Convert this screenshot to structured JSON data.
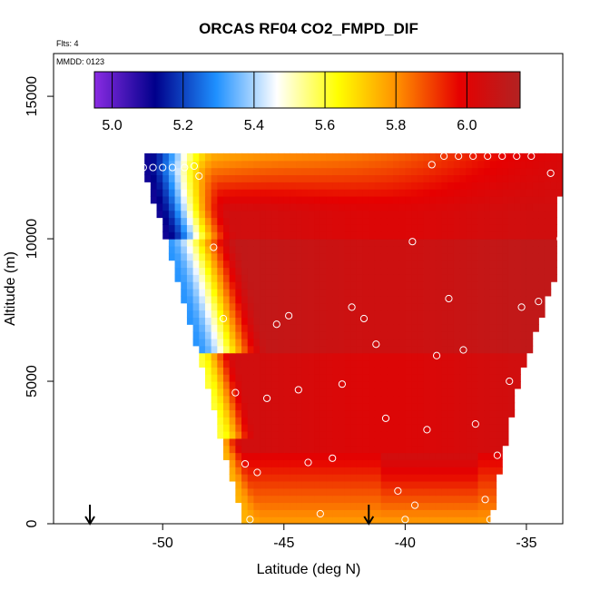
{
  "chart_data": {
    "type": "heatmap",
    "title": "ORCAS RF04 CO2_FMPD_DIF",
    "notes": [
      "Flts: 4",
      "MMDD: 0123"
    ],
    "xlabel": "Latitude (deg N)",
    "ylabel": "Altitude (m)",
    "xlim": [
      -54.5,
      -33.5
    ],
    "ylim": [
      0,
      16500
    ],
    "x_ticks": [
      -50,
      -45,
      -40,
      -35
    ],
    "x_tick_labels": [
      "-50",
      "-45",
      "-40",
      "-35"
    ],
    "y_ticks": [
      0,
      5000,
      10000,
      15000
    ],
    "y_tick_labels": [
      "0",
      "5000",
      "10000",
      "15000"
    ],
    "colorbar": {
      "range": [
        4.95,
        6.15
      ],
      "ticks": [
        5.0,
        5.2,
        5.4,
        5.6,
        5.8,
        6.0
      ],
      "tick_labels": [
        "5.0",
        "5.2",
        "5.4",
        "5.6",
        "5.8",
        "6.0"
      ],
      "colors": [
        "#8a2be2",
        "#00008b",
        "#1e90ff",
        "#ffffff",
        "#ffff00",
        "#ff8c00",
        "#e60000",
        "#b22222"
      ]
    },
    "field_extent": {
      "alt_range": [
        0,
        13000
      ],
      "lat_left_edge": [
        [
          0,
          -46.6
        ],
        [
          2000,
          -47.3
        ],
        [
          5000,
          -48.2
        ],
        [
          9000,
          -49.5
        ],
        [
          12400,
          -50.8
        ]
      ],
      "lat_right_edge": [
        [
          0,
          -36.5
        ],
        [
          2000,
          -36.1
        ],
        [
          5000,
          -35.3
        ],
        [
          9000,
          -33.7
        ],
        [
          12400,
          -33.6
        ]
      ]
    },
    "arrows_lat": [
      -53.0,
      -41.5
    ],
    "flight_points": [
      {
        "lat": -50.8,
        "alt": 12500
      },
      {
        "lat": -50.4,
        "alt": 12500
      },
      {
        "lat": -50.0,
        "alt": 12500
      },
      {
        "lat": -49.6,
        "alt": 12500
      },
      {
        "lat": -49.1,
        "alt": 12500
      },
      {
        "lat": -48.7,
        "alt": 12550
      },
      {
        "lat": -48.5,
        "alt": 12200
      },
      {
        "lat": -47.9,
        "alt": 9700
      },
      {
        "lat": -47.5,
        "alt": 7200
      },
      {
        "lat": -47.0,
        "alt": 4600
      },
      {
        "lat": -46.6,
        "alt": 2100
      },
      {
        "lat": -46.1,
        "alt": 1800
      },
      {
        "lat": -46.4,
        "alt": 150
      },
      {
        "lat": -45.7,
        "alt": 4400
      },
      {
        "lat": -45.3,
        "alt": 7000
      },
      {
        "lat": -44.8,
        "alt": 7300
      },
      {
        "lat": -44.4,
        "alt": 4700
      },
      {
        "lat": -44.0,
        "alt": 2150
      },
      {
        "lat": -43.5,
        "alt": 350
      },
      {
        "lat": -43.0,
        "alt": 2300
      },
      {
        "lat": -42.6,
        "alt": 4900
      },
      {
        "lat": -42.2,
        "alt": 7600
      },
      {
        "lat": -41.7,
        "alt": 7200
      },
      {
        "lat": -41.2,
        "alt": 6300
      },
      {
        "lat": -40.8,
        "alt": 3700
      },
      {
        "lat": -40.3,
        "alt": 1150
      },
      {
        "lat": -40.0,
        "alt": 150
      },
      {
        "lat": -39.6,
        "alt": 650
      },
      {
        "lat": -39.7,
        "alt": 9900
      },
      {
        "lat": -39.1,
        "alt": 3300
      },
      {
        "lat": -38.7,
        "alt": 5900
      },
      {
        "lat": -38.2,
        "alt": 7900
      },
      {
        "lat": -37.6,
        "alt": 6100
      },
      {
        "lat": -37.1,
        "alt": 3500
      },
      {
        "lat": -36.7,
        "alt": 850
      },
      {
        "lat": -36.5,
        "alt": 150
      },
      {
        "lat": -36.2,
        "alt": 2400
      },
      {
        "lat": -35.7,
        "alt": 5000
      },
      {
        "lat": -35.2,
        "alt": 7600
      },
      {
        "lat": -34.5,
        "alt": 7800
      },
      {
        "lat": -34.0,
        "alt": 7800
      },
      {
        "lat": -33.6,
        "alt": 8200
      },
      {
        "lat": -33.6,
        "alt": 10000
      },
      {
        "lat": -34.0,
        "alt": 12300
      },
      {
        "lat": -38.9,
        "alt": 12600
      },
      {
        "lat": -38.4,
        "alt": 12900
      },
      {
        "lat": -37.8,
        "alt": 12900
      },
      {
        "lat": -37.2,
        "alt": 12900
      },
      {
        "lat": -36.6,
        "alt": 12900
      },
      {
        "lat": -36.0,
        "alt": 12900
      },
      {
        "lat": -35.4,
        "alt": 12900
      },
      {
        "lat": -34.8,
        "alt": 12900
      }
    ]
  }
}
